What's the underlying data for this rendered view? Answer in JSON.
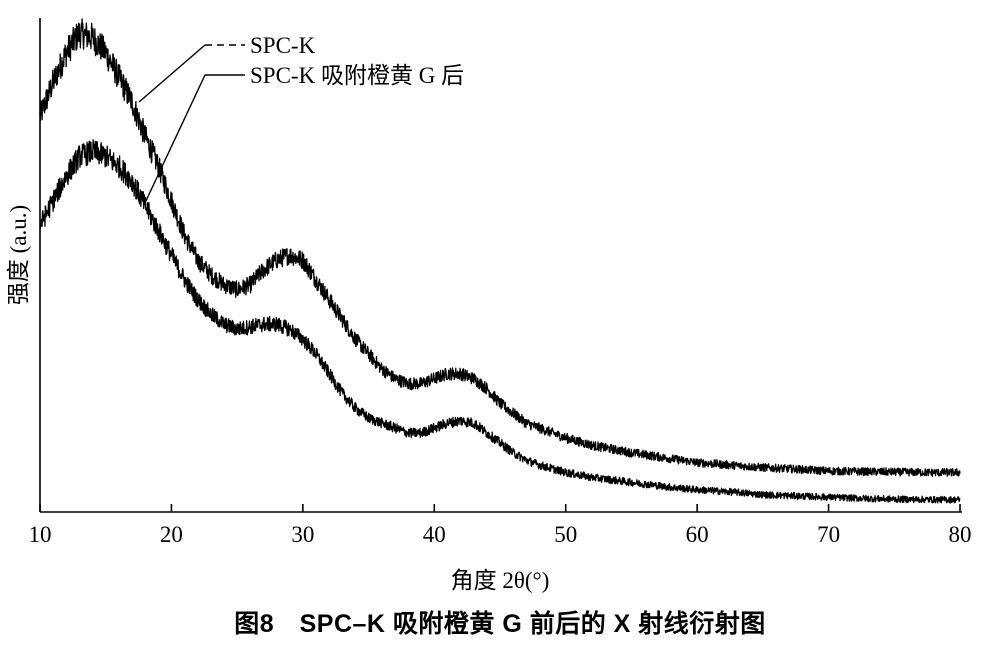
{
  "chart_data": {
    "type": "line",
    "xlabel": "角度 2θ(°)",
    "ylabel": "强度 (a.u.)",
    "xlim": [
      10,
      80
    ],
    "xticks": [
      10,
      20,
      30,
      40,
      50,
      60,
      70,
      80
    ],
    "y_tick_labels": false,
    "grid": false,
    "legend_position": "top-left",
    "series": [
      {
        "name": "SPC-K",
        "style": "dashed",
        "color": "#000000",
        "x": [
          10,
          11,
          12,
          13,
          14,
          15,
          16,
          17,
          18,
          19,
          20,
          21,
          22,
          23,
          24,
          25,
          26,
          27,
          28,
          29,
          30,
          31,
          32,
          33,
          34,
          35,
          36,
          37,
          38,
          39,
          40,
          41,
          42,
          43,
          44,
          45,
          46,
          47,
          48,
          50,
          52,
          55,
          58,
          60,
          63,
          65,
          68,
          70,
          72,
          75,
          78,
          80
        ],
        "y": [
          80,
          87,
          93,
          97,
          96,
          93,
          88,
          83,
          76,
          70,
          63,
          56,
          51,
          48,
          46,
          45,
          46,
          49,
          51,
          52,
          51,
          47,
          43,
          39,
          35,
          32,
          29,
          27,
          26,
          26,
          27,
          28,
          28,
          27,
          25,
          22,
          20,
          18,
          17,
          15,
          13.5,
          12,
          10.8,
          10,
          9.4,
          9,
          8.6,
          8.3,
          8.2,
          8.1,
          8,
          8
        ]
      },
      {
        "name": "SPC-K 吸附橙黄 G 后",
        "style": "solid",
        "color": "#000000",
        "x": [
          10,
          11,
          12,
          13,
          14,
          15,
          16,
          17,
          18,
          19,
          20,
          21,
          22,
          23,
          24,
          25,
          26,
          27,
          28,
          29,
          30,
          31,
          32,
          33,
          34,
          35,
          36,
          37,
          38,
          39,
          40,
          41,
          42,
          43,
          44,
          45,
          46,
          47,
          48,
          50,
          52,
          55,
          58,
          60,
          63,
          65,
          68,
          70,
          72,
          75,
          78,
          80
        ],
        "y": [
          58,
          63,
          68,
          72,
          73,
          72,
          70,
          67,
          62,
          57,
          52,
          47,
          43,
          40,
          38,
          37,
          37.5,
          38,
          38,
          37,
          35,
          32,
          28,
          24,
          21,
          19,
          18,
          17,
          16,
          16,
          17,
          18,
          18.5,
          18,
          16,
          14,
          12,
          10.5,
          9.5,
          8,
          7,
          6,
          5,
          4.5,
          4,
          3.5,
          3.2,
          3,
          2.8,
          2.6,
          2.5,
          2.5
        ]
      }
    ]
  },
  "caption": "图8　SPC–K 吸附橙黄 G 前后的 X 射线衍射图"
}
